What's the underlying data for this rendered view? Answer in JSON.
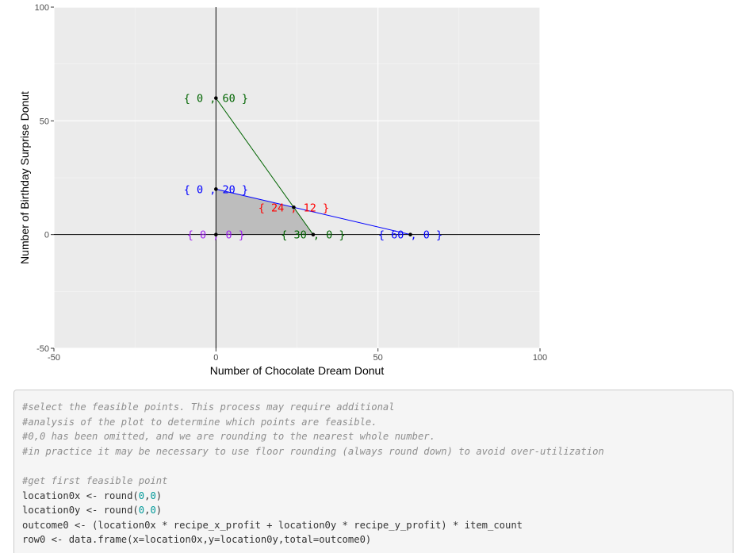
{
  "chart_data": {
    "type": "line",
    "xlabel": "Number of Chocolate Dream Donut",
    "ylabel": "Number of Birthday Surprise Donut",
    "xlim": [
      -50,
      100
    ],
    "ylim": [
      -50,
      100
    ],
    "x_ticks": [
      "-50",
      "0",
      "50",
      "100"
    ],
    "y_ticks": [
      "-50",
      "0",
      "50",
      "100"
    ],
    "grid": true,
    "series": [
      {
        "color": "#006400",
        "x": [
          0,
          30
        ],
        "y": [
          60,
          0
        ]
      },
      {
        "color": "#0000ff",
        "x": [
          0,
          60
        ],
        "y": [
          20,
          0
        ]
      }
    ],
    "feasible_region": {
      "color": "#bdbdbd",
      "x": [
        0,
        0,
        24,
        30
      ],
      "y": [
        0,
        20,
        12,
        0
      ]
    },
    "points": [
      {
        "x": 0,
        "y": 60,
        "label": "{ 0 , 60 }",
        "color": "#006400"
      },
      {
        "x": 0,
        "y": 20,
        "label": "{ 0 , 20 }",
        "color": "#0000ff"
      },
      {
        "x": 24,
        "y": 12,
        "label": "{ 24 , 12 }",
        "color": "#ff0000"
      },
      {
        "x": 0,
        "y": 0,
        "label": "{ 0 , 0 }",
        "color": "#a020f0"
      },
      {
        "x": 30,
        "y": 0,
        "label": "{ 30 , 0 }",
        "color": "#006400"
      },
      {
        "x": 60,
        "y": 0,
        "label": "{ 60 , 0 }",
        "color": "#0000ff"
      }
    ]
  },
  "code": {
    "lines": [
      [
        {
          "t": "#select the feasible points. This process may require additional",
          "c": "comment"
        }
      ],
      [
        {
          "t": "#analysis of the plot to determine which points are feasible.",
          "c": "comment"
        }
      ],
      [
        {
          "t": "#0,0 has been omitted, and we are rounding to the nearest whole number.",
          "c": "comment"
        }
      ],
      [
        {
          "t": "#in practice it may be necessary to use floor rounding (always round down) to avoid over-utilization",
          "c": "comment"
        }
      ],
      [
        {
          "t": "",
          "c": ""
        }
      ],
      [
        {
          "t": "#get first feasible point",
          "c": "comment"
        }
      ],
      [
        {
          "t": "location0x <- round(",
          "c": ""
        },
        {
          "t": "0",
          "c": "num"
        },
        {
          "t": ",",
          "c": ""
        },
        {
          "t": "0",
          "c": "num"
        },
        {
          "t": ")",
          "c": ""
        }
      ],
      [
        {
          "t": "location0y <- round(",
          "c": ""
        },
        {
          "t": "0",
          "c": "num"
        },
        {
          "t": ",",
          "c": ""
        },
        {
          "t": "0",
          "c": "num"
        },
        {
          "t": ")",
          "c": ""
        }
      ],
      [
        {
          "t": "outcome0 <- (location0x * recipe_x_profit + location0y * recipe_y_profit) * item_count",
          "c": ""
        }
      ],
      [
        {
          "t": "row0 <- data.frame(x=location0x,y=location0y,total=outcome0)",
          "c": ""
        }
      ]
    ]
  }
}
